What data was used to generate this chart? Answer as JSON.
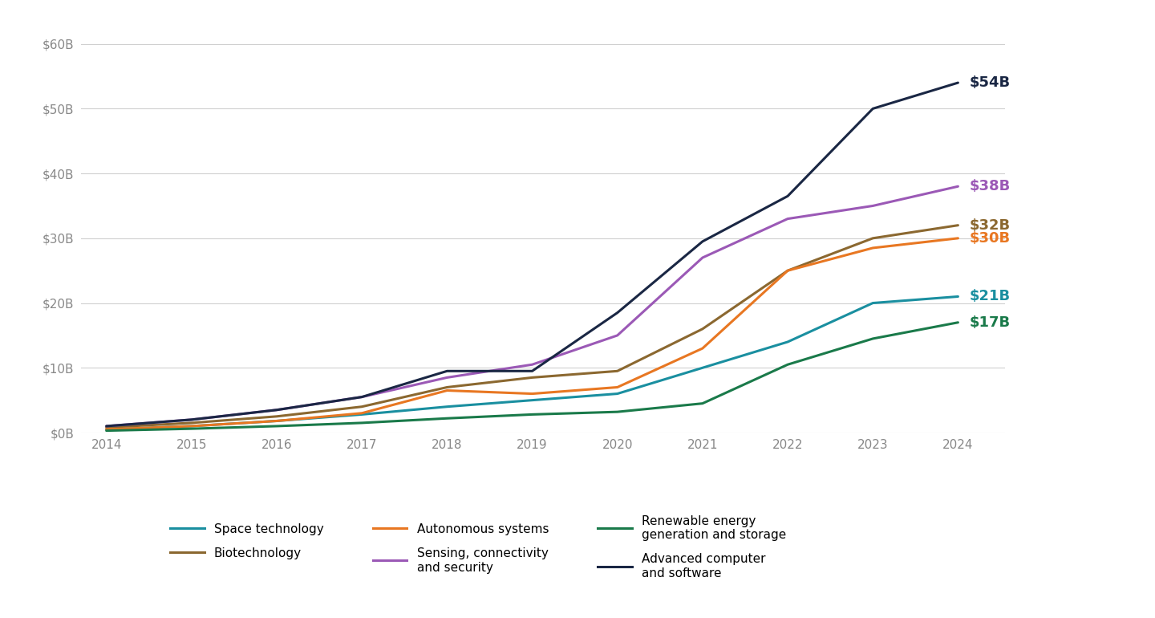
{
  "years": [
    2014,
    2015,
    2016,
    2017,
    2018,
    2019,
    2020,
    2021,
    2022,
    2023,
    2024
  ],
  "series": [
    {
      "name": "Space technology",
      "color": "#1a8fa0",
      "final_label": "$21B",
      "label_color": "#1a8fa0",
      "values": [
        0.5,
        1.0,
        1.8,
        2.8,
        4.0,
        5.0,
        6.0,
        10.0,
        14.0,
        20.0,
        21.0
      ]
    },
    {
      "name": "Biotechnology",
      "color": "#8B6830",
      "final_label": "$32B",
      "label_color": "#8B6830",
      "values": [
        0.8,
        1.5,
        2.5,
        4.0,
        7.0,
        8.5,
        9.5,
        16.0,
        25.0,
        30.0,
        32.0
      ]
    },
    {
      "name": "Autonomous systems",
      "color": "#E87722",
      "final_label": "$30B",
      "label_color": "#E87722",
      "values": [
        0.5,
        1.0,
        1.8,
        3.0,
        6.5,
        6.0,
        7.0,
        13.0,
        25.0,
        28.5,
        30.0
      ]
    },
    {
      "name": "Sensing, connectivity\nand security",
      "color": "#9b59b6",
      "final_label": "$38B",
      "label_color": "#9b59b6",
      "values": [
        1.0,
        2.0,
        3.5,
        5.5,
        8.5,
        10.5,
        15.0,
        27.0,
        33.0,
        35.0,
        38.0
      ]
    },
    {
      "name": "Renewable energy\ngeneration and storage",
      "color": "#1a7a4a",
      "final_label": "$17B",
      "label_color": "#1a7a4a",
      "values": [
        0.3,
        0.6,
        1.0,
        1.5,
        2.2,
        2.8,
        3.2,
        4.5,
        10.5,
        14.5,
        17.0
      ]
    },
    {
      "name": "Advanced computer\nand software",
      "color": "#1a2744",
      "final_label": "$54B",
      "label_color": "#1a2744",
      "values": [
        1.0,
        2.0,
        3.5,
        5.5,
        9.5,
        9.5,
        18.5,
        29.5,
        36.5,
        50.0,
        54.0
      ]
    }
  ],
  "ylim": [
    0,
    62
  ],
  "yticks": [
    0,
    10,
    20,
    30,
    40,
    50,
    60
  ],
  "ytick_labels": [
    "$0B",
    "$10B",
    "$20B",
    "$30B",
    "$40B",
    "$50B",
    "$60B"
  ],
  "background_color": "#ffffff",
  "grid_color": "#d0d0d0",
  "line_width": 2.2,
  "legend_order": [
    [
      "Space technology",
      "#1a8fa0"
    ],
    [
      "Biotechnology",
      "#8B6830"
    ],
    [
      "Autonomous systems",
      "#E87722"
    ],
    [
      "Sensing, connectivity\nand security",
      "#9b59b6"
    ],
    [
      "Renewable energy\ngeneration and storage",
      "#1a7a4a"
    ],
    [
      "Advanced computer\nand software",
      "#1a2744"
    ]
  ]
}
